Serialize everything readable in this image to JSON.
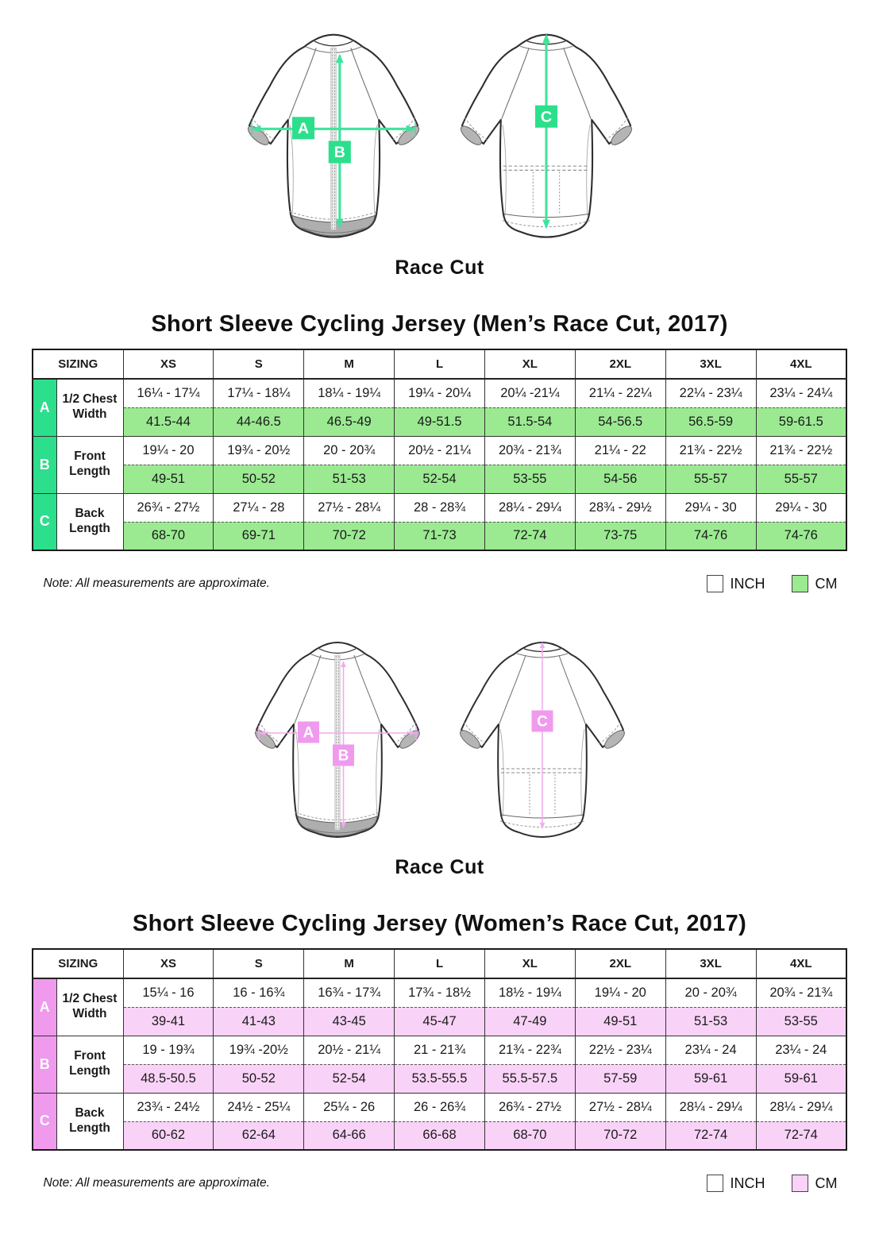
{
  "sections": [
    {
      "id": "men",
      "diagram_caption": "Race Cut",
      "title": "Short Sleeve Cycling Jersey (Men’s Race Cut, 2017)",
      "colors": {
        "accent": "#2CDF8C",
        "light": "#9BEA92",
        "arrow": "#3FE49C"
      },
      "table": {
        "header": [
          "SIZING",
          "XS",
          "S",
          "M",
          "L",
          "XL",
          "2XL",
          "3XL",
          "4XL"
        ],
        "rows": [
          {
            "key": "A",
            "label": "1/2 Chest Width",
            "inch": [
              "16¼ - 17¼",
              "17¼ - 18¼",
              "18¼ - 19¼",
              "19¼ - 20¼",
              "20¼ -21¼",
              "21¼ - 22¼",
              "22¼ - 23¼",
              "23¼ - 24¼"
            ],
            "cm": [
              "41.5-44",
              "44-46.5",
              "46.5-49",
              "49-51.5",
              "51.5-54",
              "54-56.5",
              "56.5-59",
              "59-61.5"
            ]
          },
          {
            "key": "B",
            "label": "Front Length",
            "inch": [
              "19¼ - 20",
              "19¾ - 20½",
              "20 - 20¾",
              "20½ - 21¼",
              "20¾ - 21¾",
              "21¼ - 22",
              "21¾ - 22½",
              "21¾ - 22½"
            ],
            "cm": [
              "49-51",
              "50-52",
              "51-53",
              "52-54",
              "53-55",
              "54-56",
              "55-57",
              "55-57"
            ]
          },
          {
            "key": "C",
            "label": "Back Length",
            "inch": [
              "26¾ - 27½",
              "27¼ - 28",
              "27½ - 28¼",
              "28 - 28¾",
              "28¼ - 29¼",
              "28¾ - 29½",
              "29¼ - 30",
              "29¼ - 30"
            ],
            "cm": [
              "68-70",
              "69-71",
              "70-72",
              "71-73",
              "72-74",
              "73-75",
              "74-76",
              "74-76"
            ]
          }
        ]
      },
      "note": "Note: All measurements are approximate.",
      "legend": {
        "inch": "INCH",
        "cm": "CM"
      }
    },
    {
      "id": "women",
      "diagram_caption": "Race Cut",
      "title": "Short Sleeve Cycling Jersey (Women’s Race Cut, 2017)",
      "colors": {
        "accent": "#F09AEE",
        "light": "#F9D3F7",
        "arrow": "#F2ABEF"
      },
      "table": {
        "header": [
          "SIZING",
          "XS",
          "S",
          "M",
          "L",
          "XL",
          "2XL",
          "3XL",
          "4XL"
        ],
        "rows": [
          {
            "key": "A",
            "label": "1/2 Chest Width",
            "inch": [
              "15¼ - 16",
              "16 - 16¾",
              "16¾ - 17¾",
              "17¾ - 18½",
              "18½ - 19¼",
              "19¼ - 20",
              "20 - 20¾",
              "20¾ - 21¾"
            ],
            "cm": [
              "39-41",
              "41-43",
              "43-45",
              "45-47",
              "47-49",
              "49-51",
              "51-53",
              "53-55"
            ]
          },
          {
            "key": "B",
            "label": "Front Length",
            "inch": [
              "19 - 19¾",
              "19¾ -20½",
              "20½ - 21¼",
              "21 - 21¾",
              "21¾ - 22¾",
              "22½ - 23¼",
              "23¼ - 24",
              "23¼ - 24"
            ],
            "cm": [
              "48.5-50.5",
              "50-52",
              "52-54",
              "53.5-55.5",
              "55.5-57.5",
              "57-59",
              "59-61",
              "59-61"
            ]
          },
          {
            "key": "C",
            "label": "Back Length",
            "inch": [
              "23¾ - 24½",
              "24½ - 25¼",
              "25¼ - 26",
              "26 - 26¾",
              "26¾ - 27½",
              "27½ - 28¼",
              "28¼ - 29¼",
              "28¼ - 29¼"
            ],
            "cm": [
              "60-62",
              "62-64",
              "64-66",
              "66-68",
              "68-70",
              "70-72",
              "72-74",
              "72-74"
            ]
          }
        ]
      },
      "note": "Note: All measurements are approximate.",
      "legend": {
        "inch": "INCH",
        "cm": "CM"
      }
    }
  ]
}
